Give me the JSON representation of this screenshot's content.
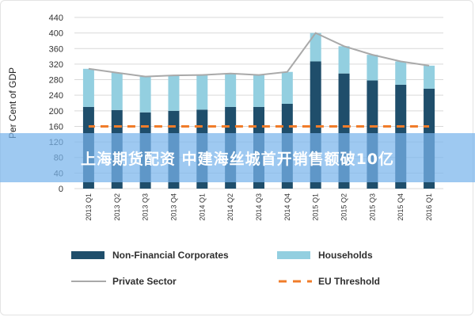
{
  "banner": {
    "text": "上海期货配资 中建海丝城首开销售额破10亿",
    "color": "#78b4eb"
  },
  "chart_data": {
    "type": "bar",
    "stacked": true,
    "title": "",
    "xlabel": "",
    "ylabel": "Per Cent of GDP",
    "ylim": [
      0,
      440
    ],
    "yticks": [
      0,
      40,
      80,
      120,
      160,
      200,
      240,
      280,
      320,
      360,
      400,
      440
    ],
    "grid": true,
    "legend_position": "bottom",
    "categories": [
      "2013 Q1",
      "2013 Q2",
      "2013 Q3",
      "2013 Q4",
      "2014 Q1",
      "2014 Q2",
      "2014 Q3",
      "2014 Q4",
      "2015 Q1",
      "2015 Q2",
      "2015 Q3",
      "2015 Q4",
      "2016 Q1"
    ],
    "series": [
      {
        "name": "Non-Financial Corporates",
        "kind": "bar",
        "color": "#1f4e6b",
        "values": [
          210,
          202,
          196,
          200,
          203,
          210,
          210,
          218,
          327,
          296,
          278,
          267,
          257
        ]
      },
      {
        "name": "Households",
        "kind": "bar",
        "color": "#93cfe0",
        "values": [
          98,
          96,
          92,
          91,
          89,
          86,
          82,
          82,
          73,
          70,
          66,
          60,
          59
        ]
      },
      {
        "name": "Private Sector",
        "kind": "line",
        "color": "#a9a9a9",
        "values": [
          308,
          298,
          288,
          291,
          292,
          296,
          292,
          300,
          400,
          366,
          344,
          327,
          316
        ]
      },
      {
        "name": "EU Threshold",
        "kind": "dashed-line",
        "color": "#f07c2a",
        "values": [
          160,
          160,
          160,
          160,
          160,
          160,
          160,
          160,
          160,
          160,
          160,
          160,
          160
        ]
      }
    ]
  }
}
